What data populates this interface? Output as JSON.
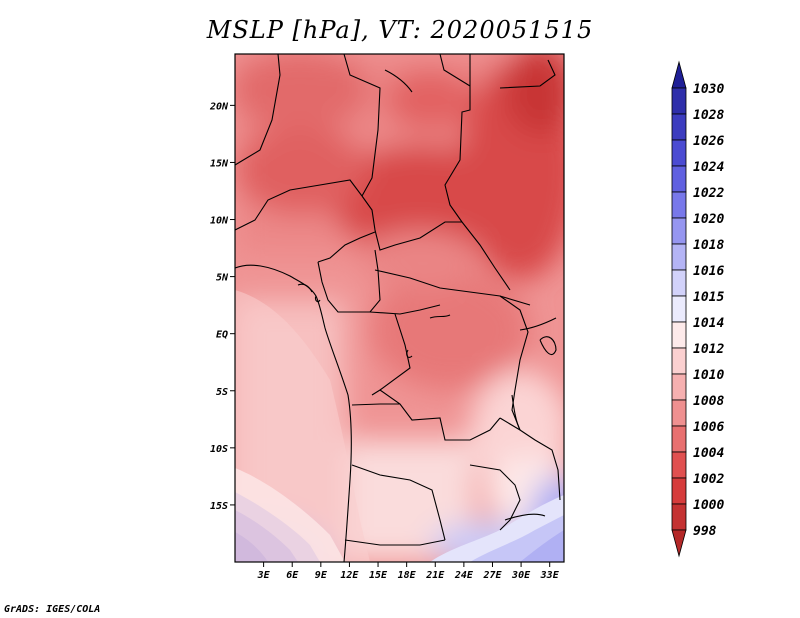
{
  "title": "MSLP [hPa], VT: 2020051515",
  "footer": "GrADS: IGES/COLA",
  "map": {
    "lon_range": [
      0,
      34.5
    ],
    "lat_range": [
      -20,
      24.5
    ],
    "x_ticks": [
      {
        "lon": 3,
        "label": "3E"
      },
      {
        "lon": 6,
        "label": "6E"
      },
      {
        "lon": 9,
        "label": "9E"
      },
      {
        "lon": 12,
        "label": "12E"
      },
      {
        "lon": 15,
        "label": "15E"
      },
      {
        "lon": 18,
        "label": "18E"
      },
      {
        "lon": 21,
        "label": "21E"
      },
      {
        "lon": 24,
        "label": "24E"
      },
      {
        "lon": 27,
        "label": "27E"
      },
      {
        "lon": 30,
        "label": "30E"
      },
      {
        "lon": 33,
        "label": "33E"
      }
    ],
    "y_ticks": [
      {
        "lat": 20,
        "label": "20N"
      },
      {
        "lat": 15,
        "label": "15N"
      },
      {
        "lat": 10,
        "label": "10N"
      },
      {
        "lat": 5,
        "label": "5N"
      },
      {
        "lat": 0,
        "label": "EQ"
      },
      {
        "lat": -5,
        "label": "5S"
      },
      {
        "lat": -10,
        "label": "10S"
      },
      {
        "lat": -15,
        "label": "15S"
      }
    ]
  },
  "colorbar": {
    "levels": [
      "1030",
      "1028",
      "1026",
      "1024",
      "1022",
      "1020",
      "1018",
      "1016",
      "1015",
      "1014",
      "1012",
      "1010",
      "1008",
      "1006",
      "1004",
      "1002",
      "1000",
      "998"
    ],
    "colors": [
      "#1f1f96",
      "#2e2eaa",
      "#3c3cbf",
      "#4b4bd2",
      "#6060e0",
      "#7878ea",
      "#9696f0",
      "#b4b4f5",
      "#d2d2fa",
      "#ebebfd",
      "#fdeaea",
      "#fbd0d0",
      "#f6b0b0",
      "#ef9090",
      "#e87070",
      "#e05050",
      "#d63c3c",
      "#c43232",
      "#b42828"
    ]
  }
}
